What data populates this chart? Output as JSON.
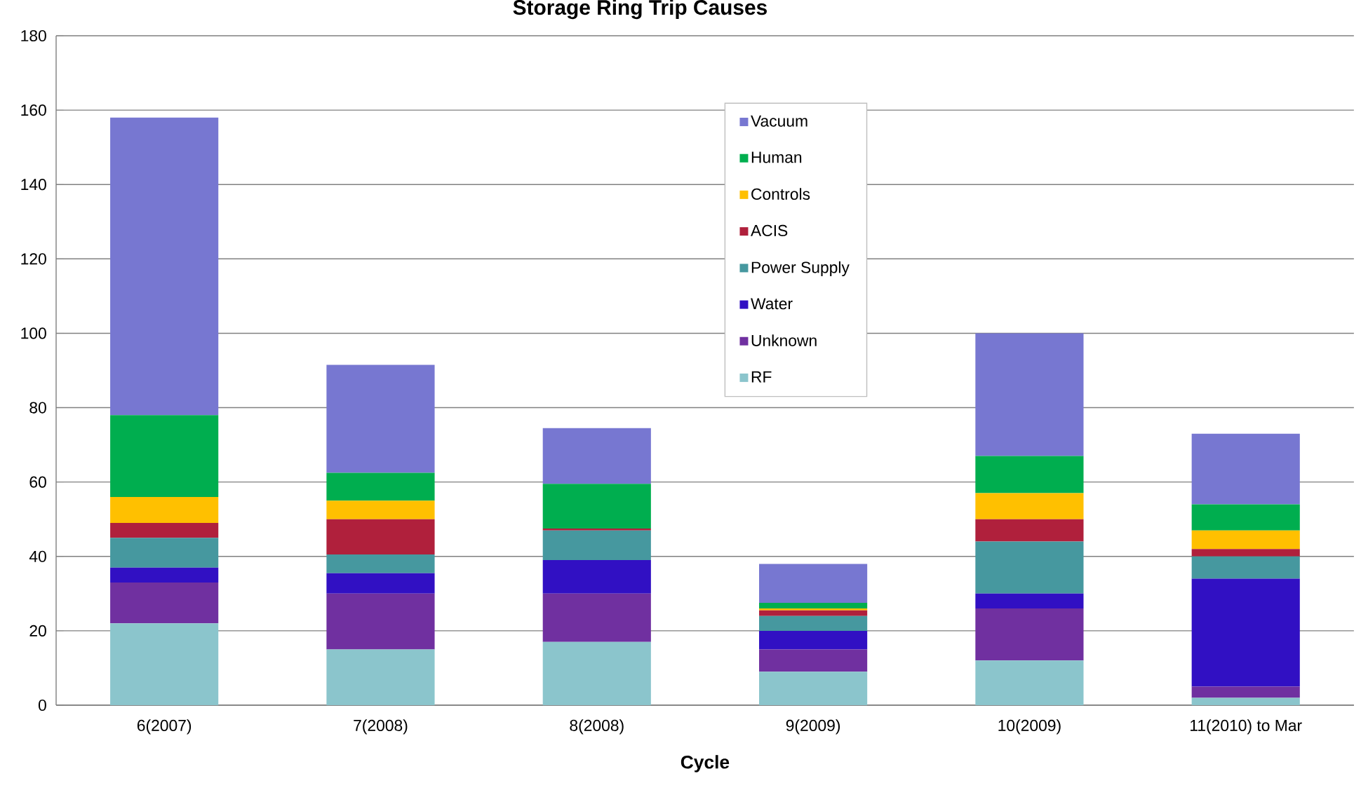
{
  "chart_data": {
    "type": "bar",
    "title": "Storage Ring Trip Causes",
    "xlabel": "Cycle",
    "categories": [
      "6(2007)",
      "7(2008)",
      "8(2008)",
      "9(2009)",
      "10(2009)",
      "11(2010) to Mar"
    ],
    "stacked": true,
    "series": [
      {
        "name": "RF",
        "color": "#8bc5cc",
        "values": [
          22,
          15,
          17,
          9,
          12,
          2
        ]
      },
      {
        "name": "Unknown",
        "color": "#7030a0",
        "values": [
          11,
          15,
          13,
          6,
          14,
          3
        ]
      },
      {
        "name": "Water",
        "color": "#3110c3",
        "values": [
          4,
          5.5,
          9,
          5,
          4,
          29
        ]
      },
      {
        "name": "Power Supply",
        "color": "#46989f",
        "values": [
          8,
          5,
          8,
          4,
          14,
          6
        ]
      },
      {
        "name": "ACIS",
        "color": "#b0203c",
        "values": [
          4,
          9.5,
          0.5,
          1.5,
          6,
          2
        ]
      },
      {
        "name": "Controls",
        "color": "#ffc000",
        "values": [
          7,
          5,
          0,
          0.5,
          7,
          5
        ]
      },
      {
        "name": "Human",
        "color": "#00ae4f",
        "values": [
          22,
          7.5,
          12,
          1.5,
          10,
          7
        ]
      },
      {
        "name": "Vacuum",
        "color": "#7777d1",
        "values": [
          80,
          29,
          15,
          10.5,
          33,
          19
        ]
      }
    ],
    "ylim": [
      0,
      180
    ],
    "yticks": [
      0,
      20,
      40,
      60,
      80,
      100,
      120,
      140,
      160,
      180
    ],
    "grid": "y",
    "legend": "top"
  }
}
